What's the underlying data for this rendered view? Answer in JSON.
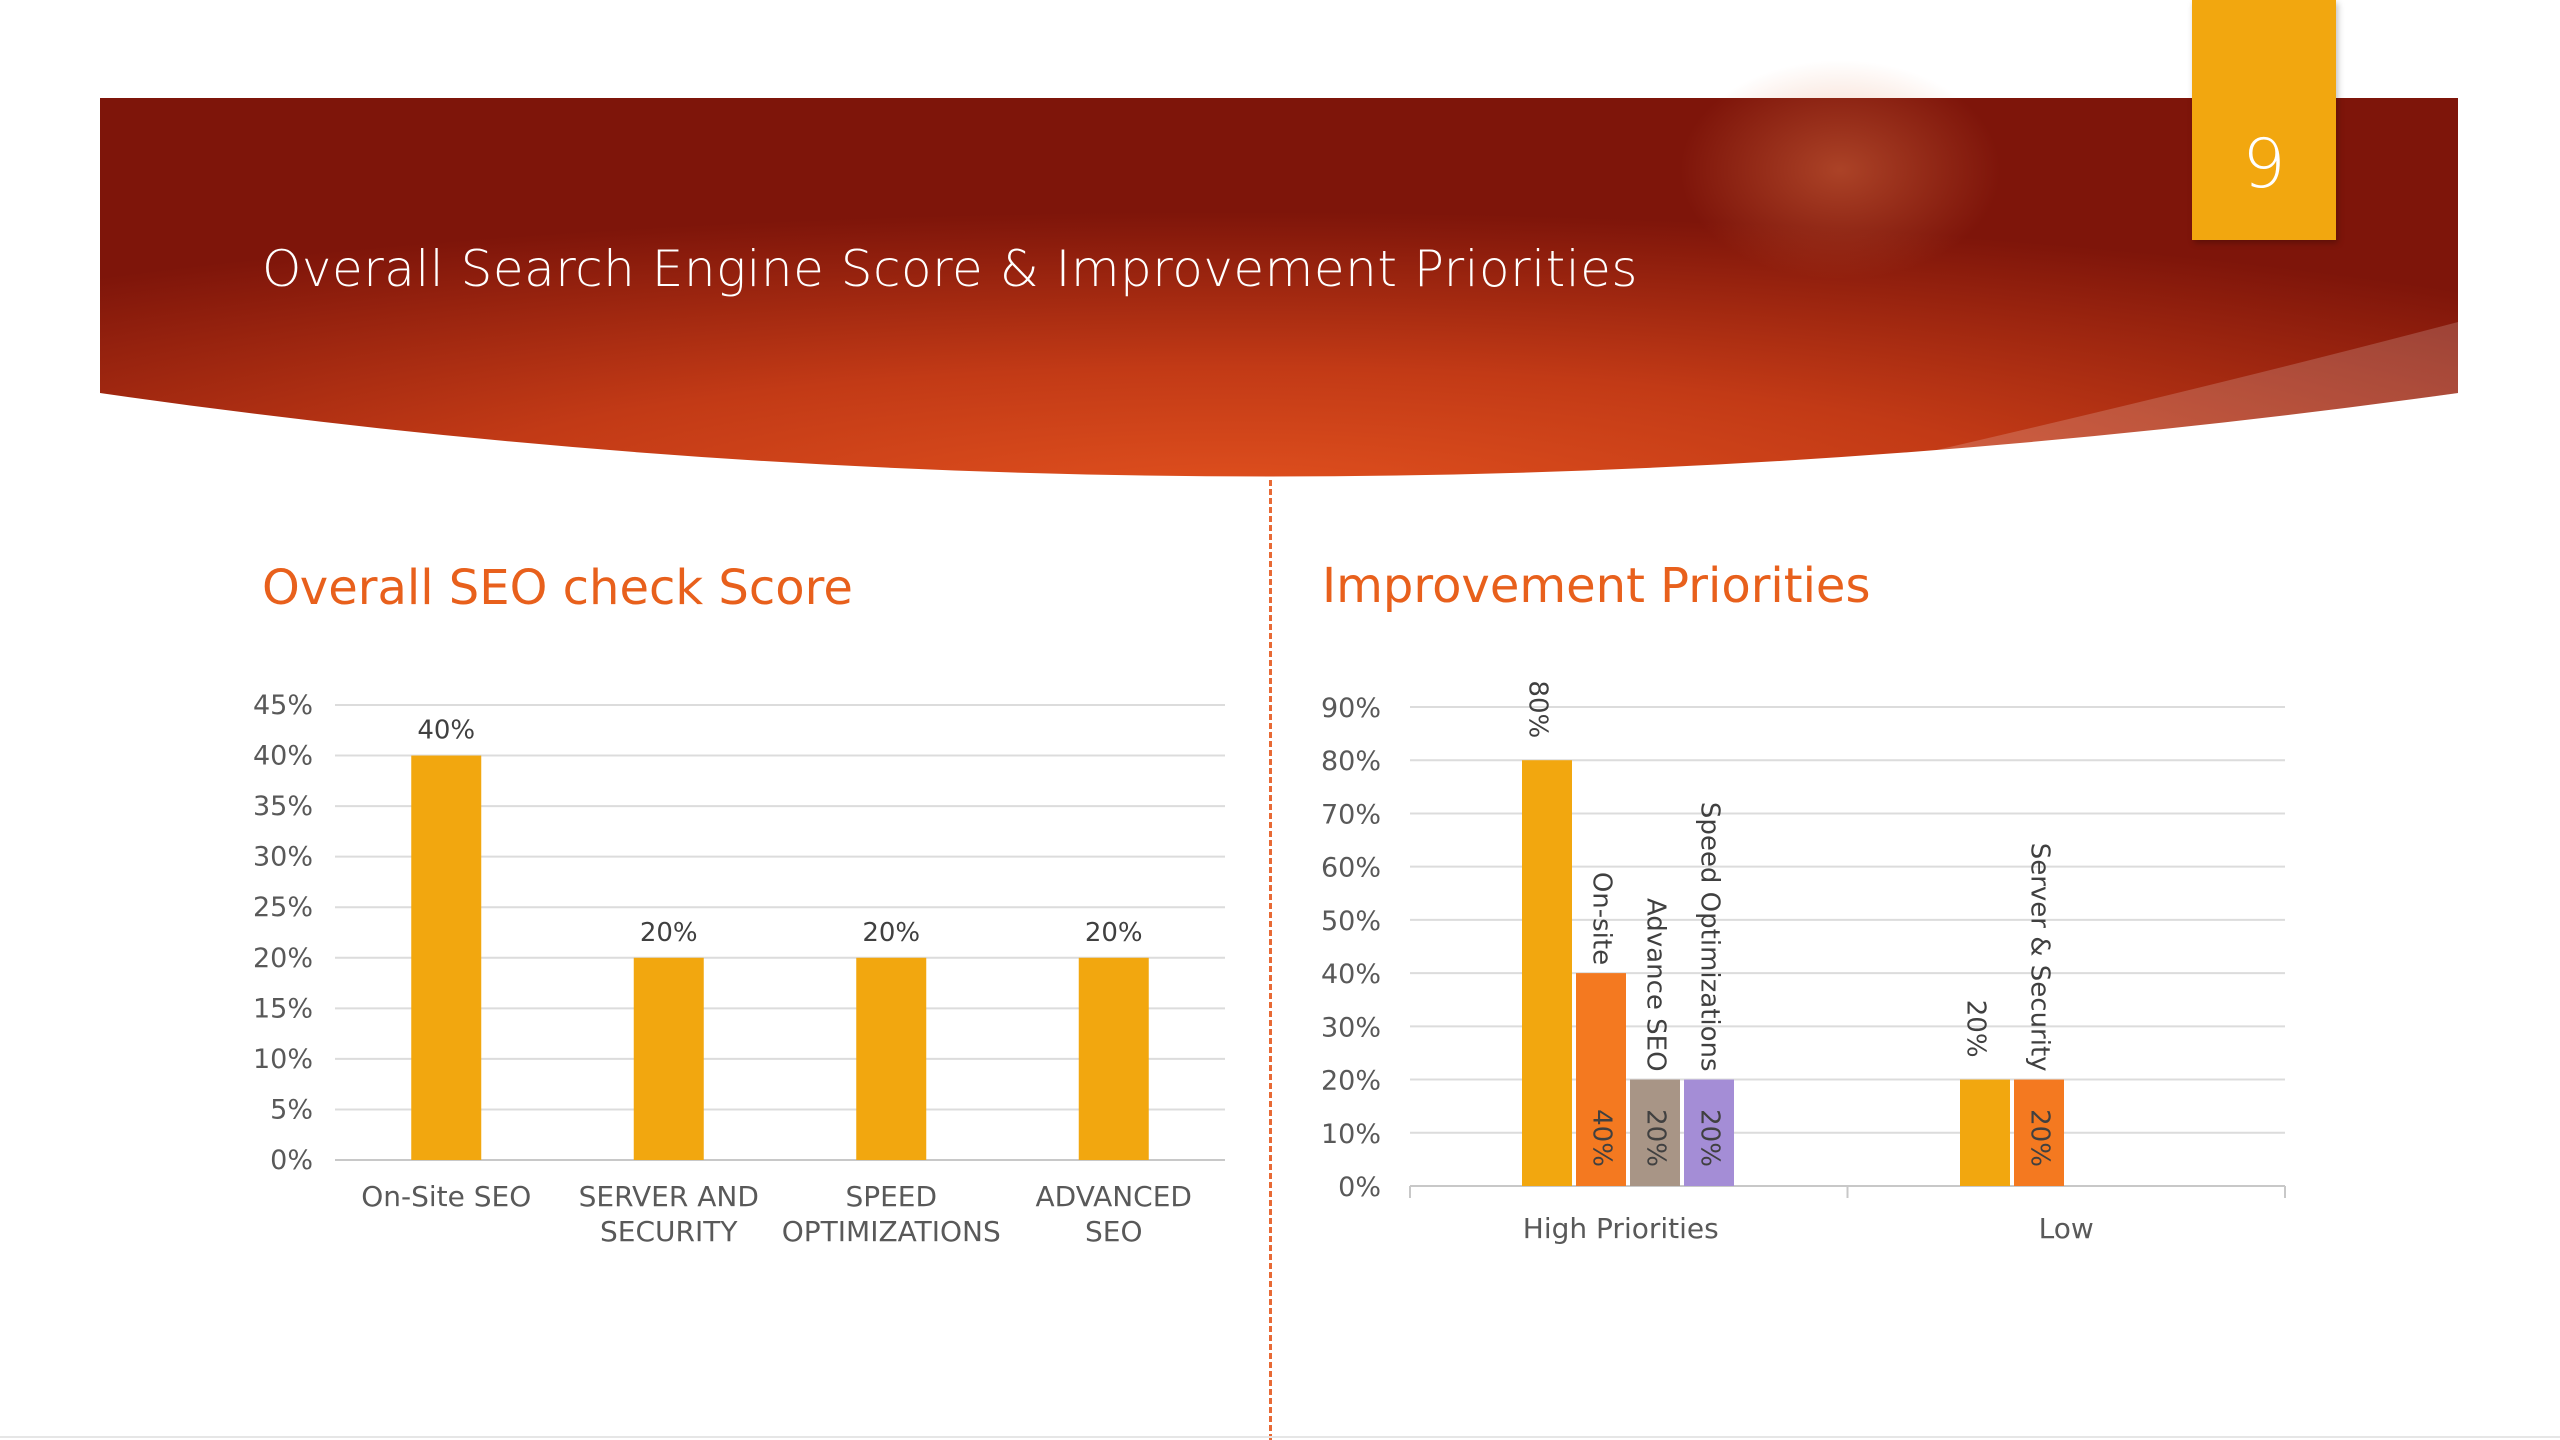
{
  "slide": {
    "title": "Overall Search Engine Score & Improvement Priorities",
    "page_number": "9",
    "colors": {
      "banner_dark": "#8a1a0c",
      "banner_bright": "#d8461c",
      "tab": "#f2a70f",
      "heading": "#e8601c"
    }
  },
  "chart_data": [
    {
      "type": "bar",
      "title": "Overall SEO check Score",
      "categories": [
        "On-Site SEO",
        "SERVER AND SECURITY",
        "SPEED OPTIMIZATIONS",
        "ADVANCED SEO"
      ],
      "category_lines": [
        [
          "On-Site SEO"
        ],
        [
          "SERVER AND",
          "SECURITY"
        ],
        [
          "SPEED",
          "OPTIMIZATIONS"
        ],
        [
          "ADVANCED",
          "SEO"
        ]
      ],
      "values": [
        40,
        20,
        20,
        20
      ],
      "data_labels": [
        "40%",
        "20%",
        "20%",
        "20%"
      ],
      "ylim": [
        0,
        45
      ],
      "yticks": [
        "0%",
        "5%",
        "10%",
        "15%",
        "20%",
        "25%",
        "30%",
        "35%",
        "40%",
        "45%"
      ],
      "grid": true,
      "color": "#f2a70f"
    },
    {
      "type": "bar",
      "title": "Improvement Priorities",
      "categories": [
        "High Priorities",
        "Low"
      ],
      "ylim": [
        0,
        90
      ],
      "yticks": [
        "0%",
        "10%",
        "20%",
        "30%",
        "40%",
        "50%",
        "60%",
        "70%",
        "80%",
        "90%"
      ],
      "grid": true,
      "groups": [
        {
          "category": "High Priorities",
          "bars": [
            {
              "value": 80,
              "label": "80%",
              "series_label": "",
              "color": "#f2a70f"
            },
            {
              "value": 40,
              "label": "40%",
              "series_label": "On-site",
              "color": "#f47920"
            },
            {
              "value": 20,
              "label": "20%",
              "series_label": "Advance SEO",
              "color": "#a89586"
            },
            {
              "value": 20,
              "label": "20%",
              "series_label": "Speed Optimizations",
              "color": "#a48dd6"
            }
          ]
        },
        {
          "category": "Low",
          "bars": [
            {
              "value": 20,
              "label": "20%",
              "series_label": "",
              "color": "#f2a70f"
            },
            {
              "value": 20,
              "label": "20%",
              "series_label": "Server & Security",
              "color": "#f47920"
            }
          ]
        }
      ]
    }
  ]
}
